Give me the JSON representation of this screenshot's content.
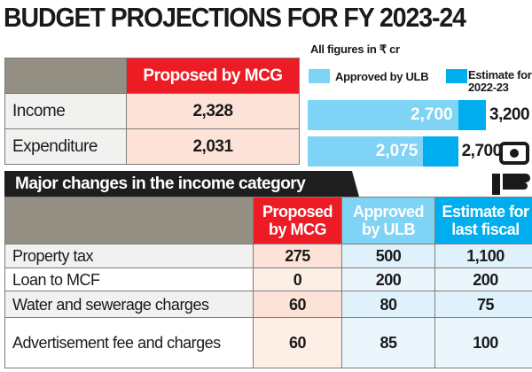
{
  "title": "BUDGET PROJECTIONS FOR FY 2023-24",
  "summary_table": {
    "header": [
      "",
      "Proposed by MCG"
    ],
    "rows": [
      {
        "label": "Income",
        "value": "2,328"
      },
      {
        "label": "Expenditure",
        "value": "2,031"
      }
    ]
  },
  "chart_data": {
    "type": "bar",
    "orientation": "horizontal",
    "note": "All figures in ₹ cr",
    "legend": [
      "Approved by ULB",
      "Estimate for 2022-23"
    ],
    "legend_placement": "top",
    "categories": [
      "Income",
      "Expenditure"
    ],
    "series": [
      {
        "name": "Approved by ULB",
        "values": [
          2700,
          2075
        ],
        "labels": [
          "2,700",
          "2,075"
        ],
        "color": "#7fd3f5"
      },
      {
        "name": "Estimate for 2022-23",
        "values": [
          3200,
          2700
        ],
        "labels": [
          "3,200",
          "2,700"
        ],
        "color": "#00aeef"
      }
    ]
  },
  "section_title": "Major changes in the income category",
  "income_table": {
    "headers": [
      "",
      "Proposed by MCG",
      "Approved by ULB",
      "Estimate for last fiscal"
    ],
    "rows": [
      {
        "label": "Property tax",
        "values": [
          "275",
          "500",
          "1,100"
        ]
      },
      {
        "label": "Loan to MCF",
        "values": [
          "0",
          "200",
          "200"
        ]
      },
      {
        "label": "Water and sewerage charges",
        "values": [
          "60",
          "80",
          "75"
        ]
      },
      {
        "label": "Advertisement fee and charges",
        "values": [
          "60",
          "85",
          "100"
        ]
      }
    ]
  },
  "colors": {
    "red": "#ed1c24",
    "light_blue": "#7fd3f5",
    "blue": "#00aeef",
    "gray": "#938f82"
  },
  "icon": "hand-with-money-icon"
}
